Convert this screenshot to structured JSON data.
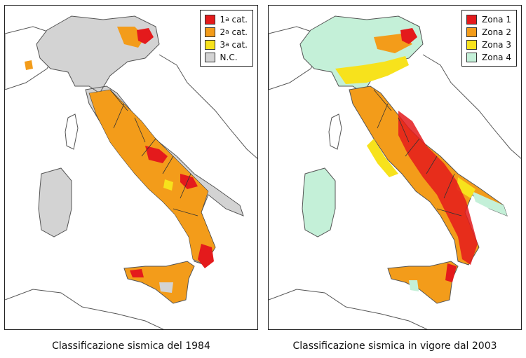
{
  "colors": {
    "cat1": "#e41a1c",
    "cat2": "#f39c1a",
    "cat3": "#f7e21c",
    "nc": "#d3d3d3",
    "zona4": "#c4f0d8",
    "border": "#333333",
    "land_outline": "#555555"
  },
  "left_map": {
    "caption": "Classificazione sismica del 1984",
    "legend": [
      {
        "label": "1",
        "sup": "a",
        "suffix": "cat.",
        "color_key": "cat1"
      },
      {
        "label": "2",
        "sup": "a",
        "suffix": "cat.",
        "color_key": "cat2"
      },
      {
        "label": "3",
        "sup": "a",
        "suffix": "cat.",
        "color_key": "cat3"
      },
      {
        "label": "N.C.",
        "sup": "",
        "suffix": "",
        "color_key": "nc"
      }
    ]
  },
  "right_map": {
    "caption": "Classificazione sismica in vigore dal 2003",
    "legend": [
      {
        "label": "Zona 1",
        "sup": "",
        "suffix": "",
        "color_key": "cat1"
      },
      {
        "label": "Zona 2",
        "sup": "",
        "suffix": "",
        "color_key": "cat2"
      },
      {
        "label": "Zona 3",
        "sup": "",
        "suffix": "",
        "color_key": "cat3"
      },
      {
        "label": "Zona 4",
        "sup": "",
        "suffix": "",
        "color_key": "zona4"
      }
    ]
  }
}
